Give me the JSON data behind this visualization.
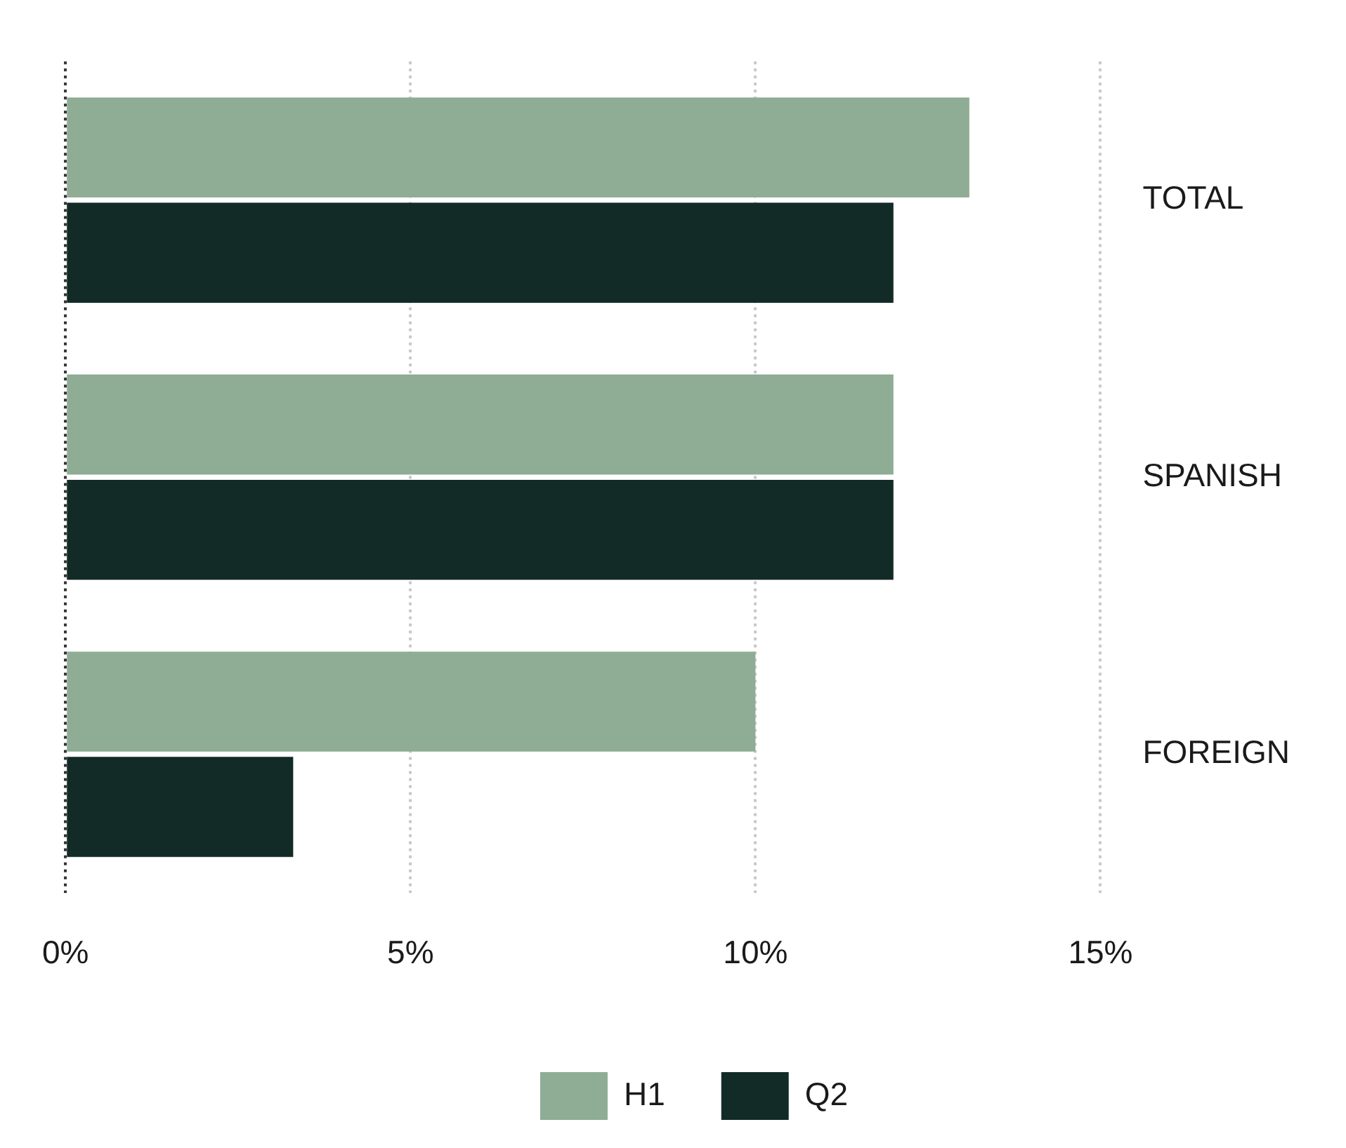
{
  "chart_data": {
    "type": "bar",
    "orientation": "horizontal",
    "categories": [
      "TOTAL",
      "SPANISH",
      "FOREIGN"
    ],
    "series": [
      {
        "name": "H1",
        "color": "#8fac95",
        "values": [
          13.1,
          12.0,
          10.0
        ]
      },
      {
        "name": "Q2",
        "color": "#132b27",
        "values": [
          12.0,
          12.0,
          3.3
        ]
      }
    ],
    "xlim": [
      0,
      15
    ],
    "xticks": [
      {
        "value": 0,
        "label": "0%"
      },
      {
        "value": 5,
        "label": "5%"
      },
      {
        "value": 10,
        "label": "10%"
      },
      {
        "value": 15,
        "label": "15%"
      }
    ],
    "grid": "x",
    "legend": "bottom"
  }
}
